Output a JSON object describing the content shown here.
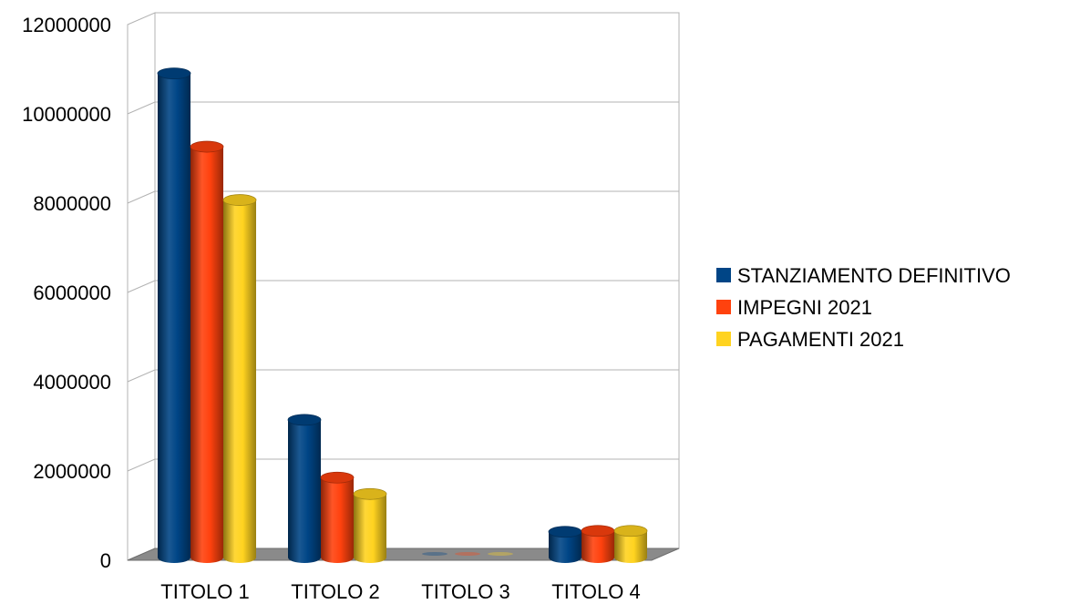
{
  "chart_data": {
    "type": "bar",
    "categories": [
      "TITOLO 1",
      "TITOLO 2",
      "TITOLO 3",
      "TITOLO 4"
    ],
    "series": [
      {
        "name": "STANZIAMENTO DEFINITIVO",
        "color": "#004586",
        "values": [
          10900000,
          3100000,
          0,
          580000
        ]
      },
      {
        "name": "IMPEGNI 2021",
        "color": "#ff420e",
        "values": [
          9250000,
          1800000,
          0,
          600000
        ]
      },
      {
        "name": "PAGAMENTI 2021",
        "color": "#ffd320",
        "values": [
          8050000,
          1430000,
          0,
          600000
        ]
      }
    ],
    "yticks": [
      "0",
      "2000000",
      "4000000",
      "6000000",
      "8000000",
      "10000000",
      "12000000"
    ],
    "ylim": [
      0,
      12000000
    ],
    "grid": true,
    "legend": "right",
    "style": "3d-cylinder"
  }
}
